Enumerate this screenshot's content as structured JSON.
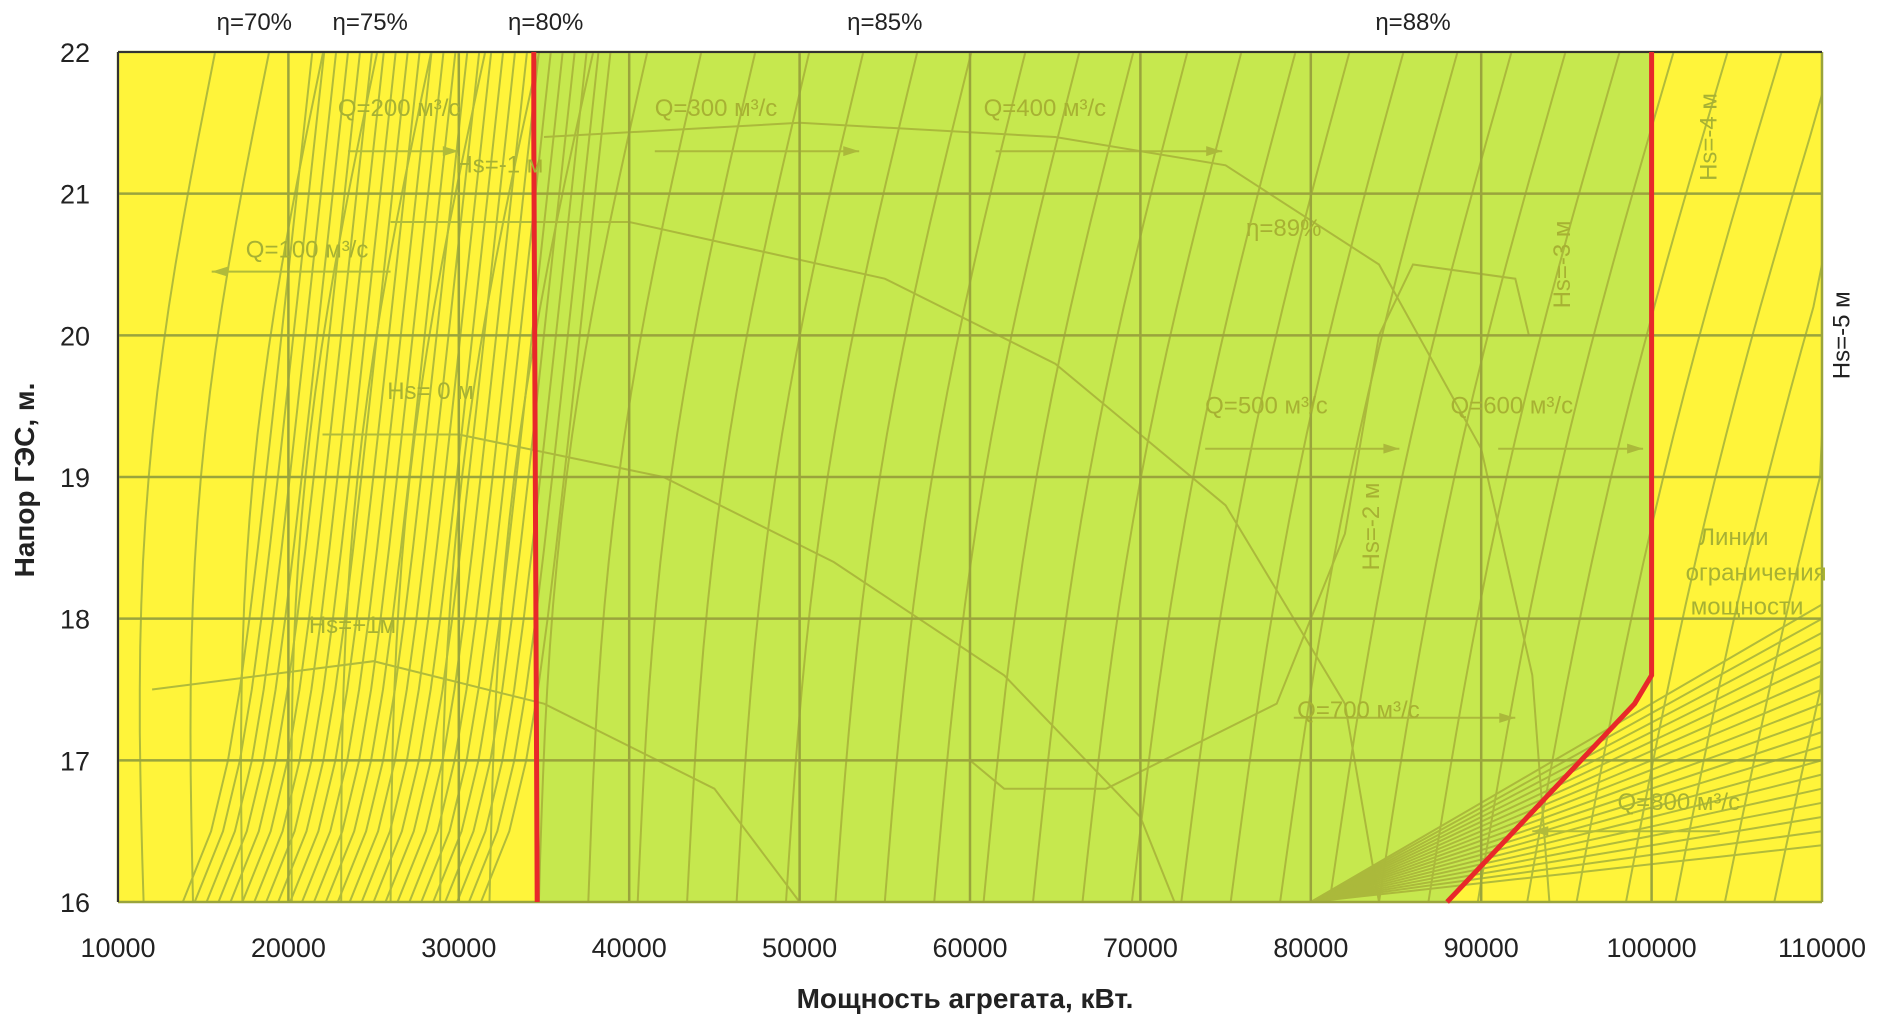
{
  "chart_data": {
    "type": "area",
    "title": "",
    "xlabel": "Мощность агрегата, кВт.",
    "ylabel": "Напор ГЭС, м.",
    "xlim": [
      10000,
      110000
    ],
    "ylim": [
      16,
      22
    ],
    "x_ticks": [
      "10000",
      "20000",
      "30000",
      "40000",
      "50000",
      "60000",
      "70000",
      "80000",
      "90000",
      "100000",
      "110000"
    ],
    "y_ticks": [
      "16",
      "17",
      "18",
      "19",
      "20",
      "21",
      "22"
    ],
    "grid": true,
    "colors": {
      "zone_outer": "#fff43a",
      "zone_working": "#c6e84e",
      "limit_line": "#e8282a",
      "curves": "#a9b53a",
      "grid": "#9aa43c"
    },
    "limit_lines": [
      {
        "name": "left_limit",
        "points": [
          [
            34400,
            22
          ],
          [
            34400,
            21.4
          ],
          [
            34600,
            16
          ]
        ]
      },
      {
        "name": "right_limit",
        "points": [
          [
            100000,
            22
          ],
          [
            100000,
            17.6
          ],
          [
            99000,
            17.4
          ],
          [
            88000,
            16
          ]
        ]
      }
    ],
    "annotations_top": [
      {
        "text": "η=70%",
        "x": 18000
      },
      {
        "text": "η=75%",
        "x": 24800
      },
      {
        "text": "η=80%",
        "x": 35100
      },
      {
        "text": "η=85%",
        "x": 55000
      },
      {
        "text": "η=88%",
        "x": 86000
      }
    ],
    "annotations": [
      {
        "text": "Q=200 м³/с",
        "x": 22900,
        "y": 21.55
      },
      {
        "text": "Q=300 м³/с",
        "x": 41500,
        "y": 21.55
      },
      {
        "text": "Q=400 м³/с",
        "x": 60800,
        "y": 21.55
      },
      {
        "text": "Q=100 м³/с",
        "x": 17500,
        "y": 20.55
      },
      {
        "text": "Q=500 м³/с",
        "x": 73800,
        "y": 19.45
      },
      {
        "text": "Q=600 м³/с",
        "x": 88200,
        "y": 19.45
      },
      {
        "text": "Q=700 м³/с",
        "x": 79200,
        "y": 17.3
      },
      {
        "text": "Q=800 м³/с",
        "x": 98000,
        "y": 16.65
      },
      {
        "text": "η=89%",
        "x": 76200,
        "y": 20.7
      },
      {
        "text": "Hs=-1 м",
        "x": 29800,
        "y": 21.15
      },
      {
        "text": "Hs= 0 м",
        "x": 25800,
        "y": 19.55
      },
      {
        "text": "Hs=+1м",
        "x": 21200,
        "y": 17.9
      },
      {
        "text": "Линии",
        "x": 102800,
        "y": 18.52
      },
      {
        "text": "ограничения",
        "x": 102000,
        "y": 18.27
      },
      {
        "text": "мощности",
        "x": 102300,
        "y": 18.03
      }
    ],
    "vertical_annotations": [
      {
        "text": "Hs=-2 м",
        "x": 84000,
        "y": 18.65
      },
      {
        "text": "Hs=-3 м",
        "x": 95200,
        "y": 20.5
      },
      {
        "text": "Hs=-4 м",
        "x": 103800,
        "y": 21.4
      },
      {
        "text": "Hs=-5 м",
        "x": 111600,
        "y": 20.0
      }
    ]
  }
}
